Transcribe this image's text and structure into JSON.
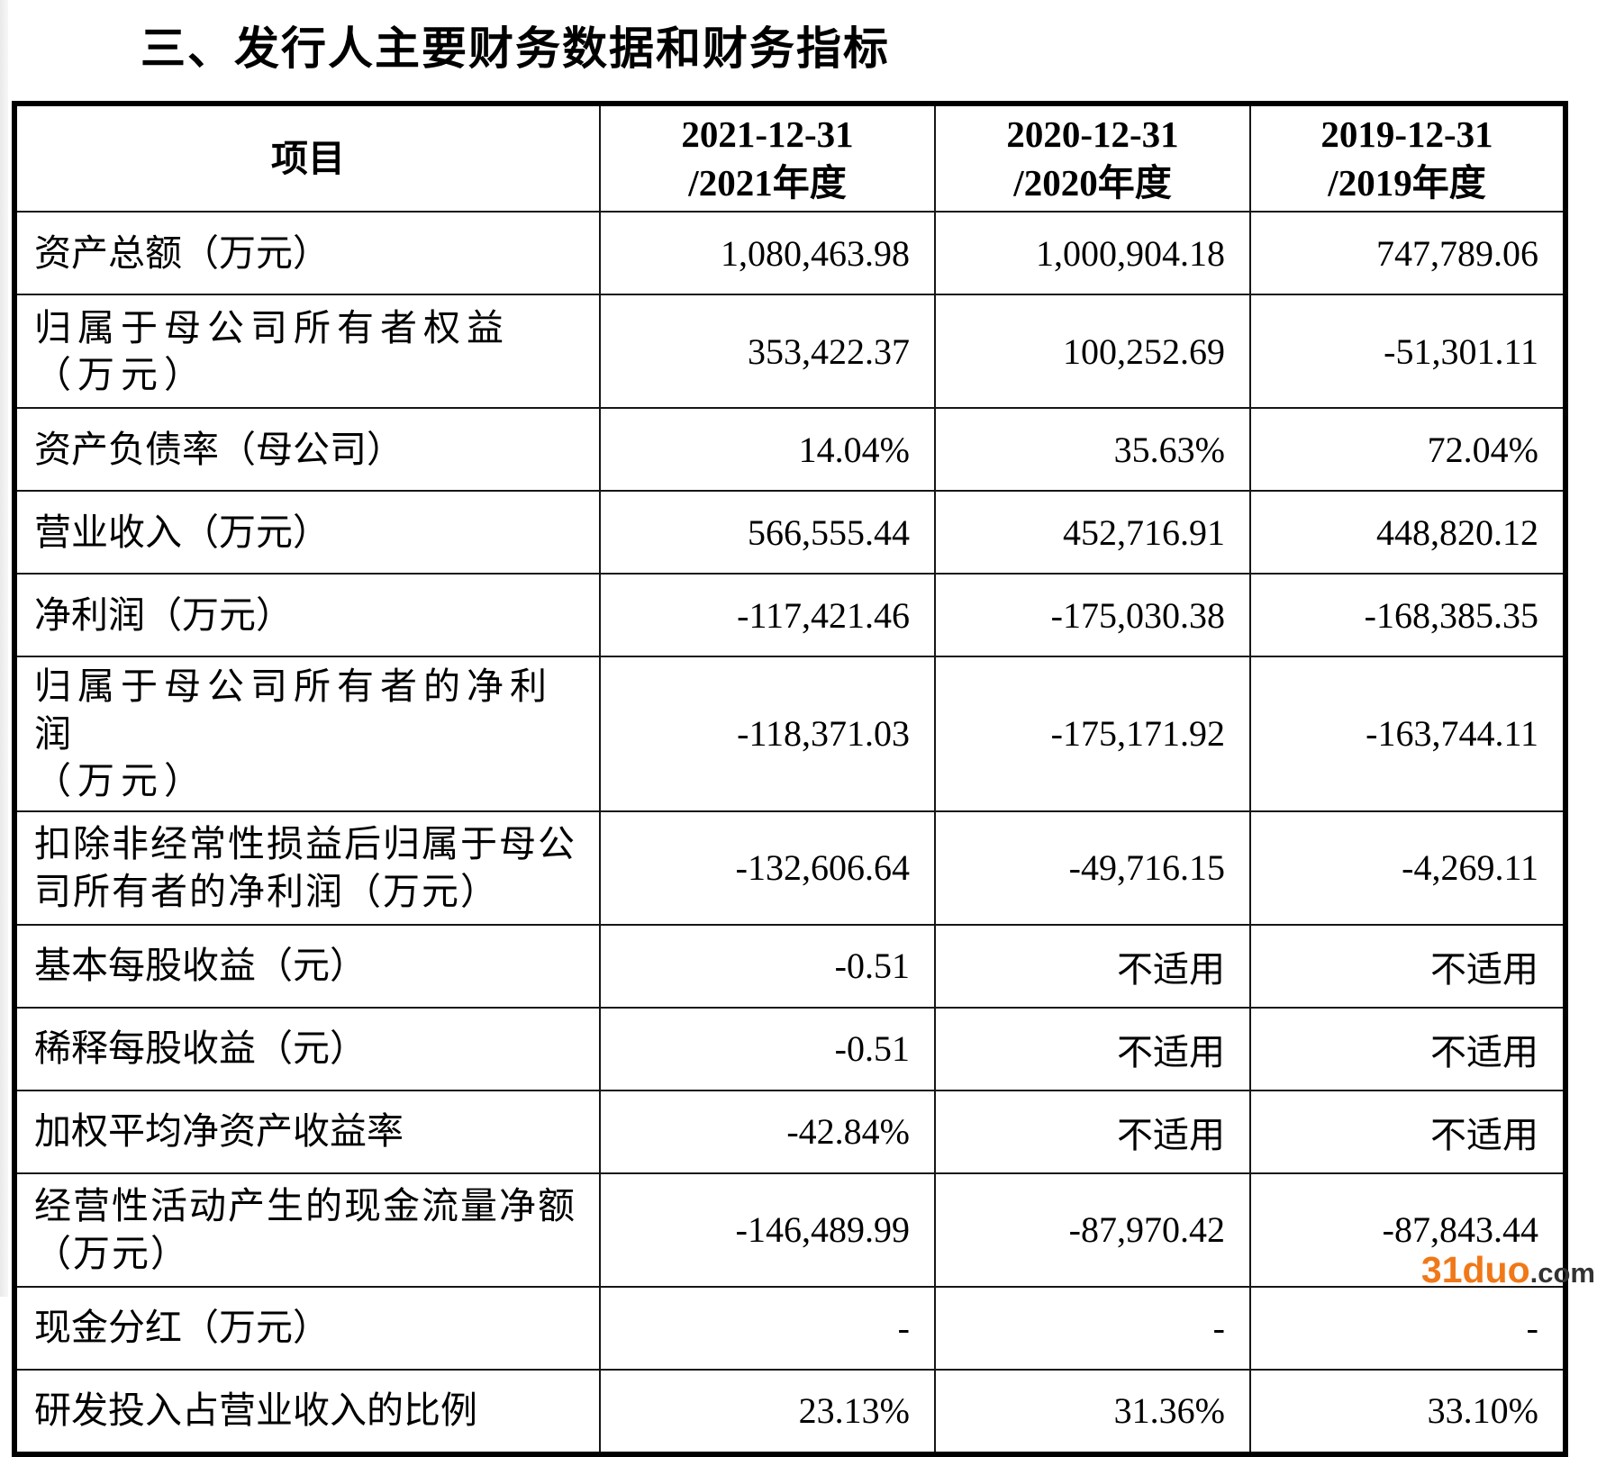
{
  "page_title": "三、发行人主要财务数据和财务指标",
  "colors": {
    "watermark_orange": "#f07818",
    "watermark_gray": "#333333",
    "border_black": "#000000"
  },
  "watermark": {
    "brand": "31duo",
    "suffix": ".com"
  },
  "table": {
    "header": {
      "item": "项目",
      "periods": [
        "2021-12-31\n/2021年度",
        "2020-12-31\n/2020年度",
        "2019-12-31\n/2019年度"
      ]
    },
    "rows": [
      {
        "label": "资产总额（万元）",
        "values": [
          "1,080,463.98",
          "1,000,904.18",
          "747,789.06"
        ]
      },
      {
        "label": "归属于母公司所有者权益\n（万元）",
        "values": [
          "353,422.37",
          "100,252.69",
          "-51,301.11"
        ]
      },
      {
        "label": "资产负债率（母公司）",
        "values": [
          "14.04%",
          "35.63%",
          "72.04%"
        ]
      },
      {
        "label": "营业收入（万元）",
        "values": [
          "566,555.44",
          "452,716.91",
          "448,820.12"
        ]
      },
      {
        "label": "净利润（万元）",
        "values": [
          "-117,421.46",
          "-175,030.38",
          "-168,385.35"
        ]
      },
      {
        "label": "归属于母公司所有者的净利润\n（万元）",
        "values": [
          "-118,371.03",
          "-175,171.92",
          "-163,744.11"
        ]
      },
      {
        "label": "扣除非经常性损益后归属于母公\n司所有者的净利润（万元）",
        "values": [
          "-132,606.64",
          "-49,716.15",
          "-4,269.11"
        ]
      },
      {
        "label": "基本每股收益（元）",
        "values": [
          "-0.51",
          "不适用",
          "不适用"
        ]
      },
      {
        "label": "稀释每股收益（元）",
        "values": [
          "-0.51",
          "不适用",
          "不适用"
        ]
      },
      {
        "label": "加权平均净资产收益率",
        "values": [
          "-42.84%",
          "不适用",
          "不适用"
        ]
      },
      {
        "label": "经营性活动产生的现金流量净额\n（万元）",
        "values": [
          "-146,489.99",
          "-87,970.42",
          "-87,843.44"
        ]
      },
      {
        "label": "现金分红（万元）",
        "values": [
          "-",
          "-",
          "-"
        ]
      },
      {
        "label": "研发投入占营业收入的比例",
        "values": [
          "23.13%",
          "31.36%",
          "33.10%"
        ]
      }
    ]
  }
}
